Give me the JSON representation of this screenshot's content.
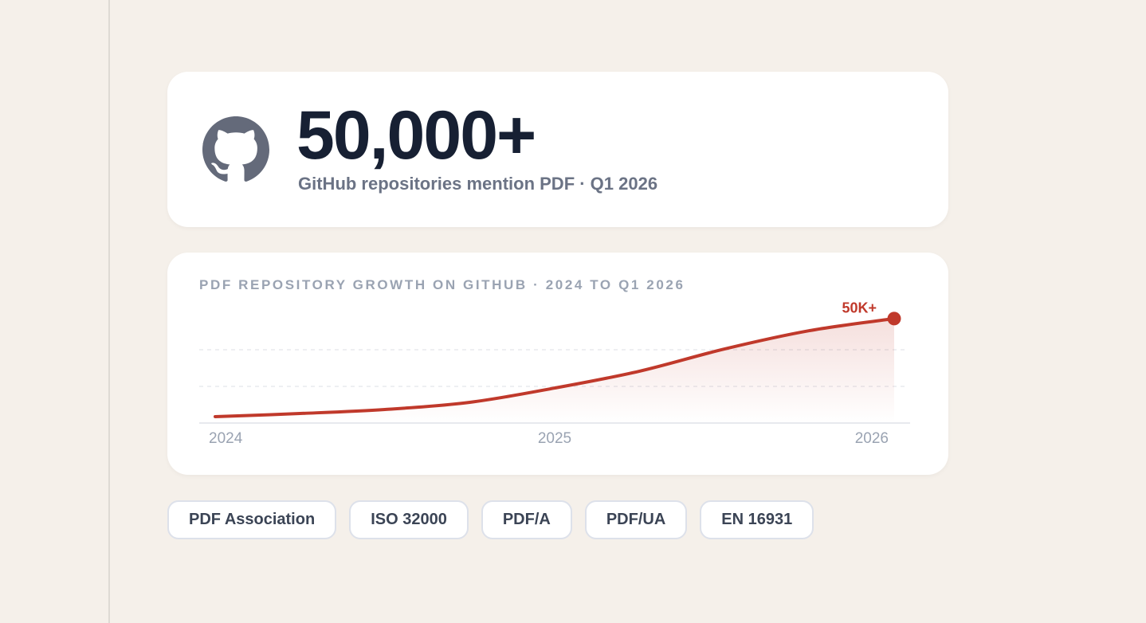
{
  "stat": {
    "value": "50,000+",
    "caption": "GitHub repositories mention PDF · Q1 2026"
  },
  "chart_data": {
    "type": "line",
    "title": "PDF REPOSITORY GROWTH ON GITHUB · 2024 TO Q1 2026",
    "x": [
      2024,
      2024.25,
      2024.5,
      2024.75,
      2025,
      2025.25,
      2025.5,
      2025.75,
      2026
    ],
    "values": [
      3500,
      5200,
      7400,
      11300,
      19100,
      28300,
      40400,
      50400,
      57000
    ],
    "color": "#c0392b",
    "xlim": [
      2024,
      2026
    ],
    "xticks": [
      2024,
      2025,
      2026
    ],
    "ylim": [
      0,
      60000
    ],
    "yticks": [
      20000,
      40000
    ],
    "grid": true,
    "annotation": "50K+"
  },
  "tags": [
    "PDF Association",
    "ISO 32000",
    "PDF/A",
    "PDF/UA",
    "EN 16931"
  ]
}
